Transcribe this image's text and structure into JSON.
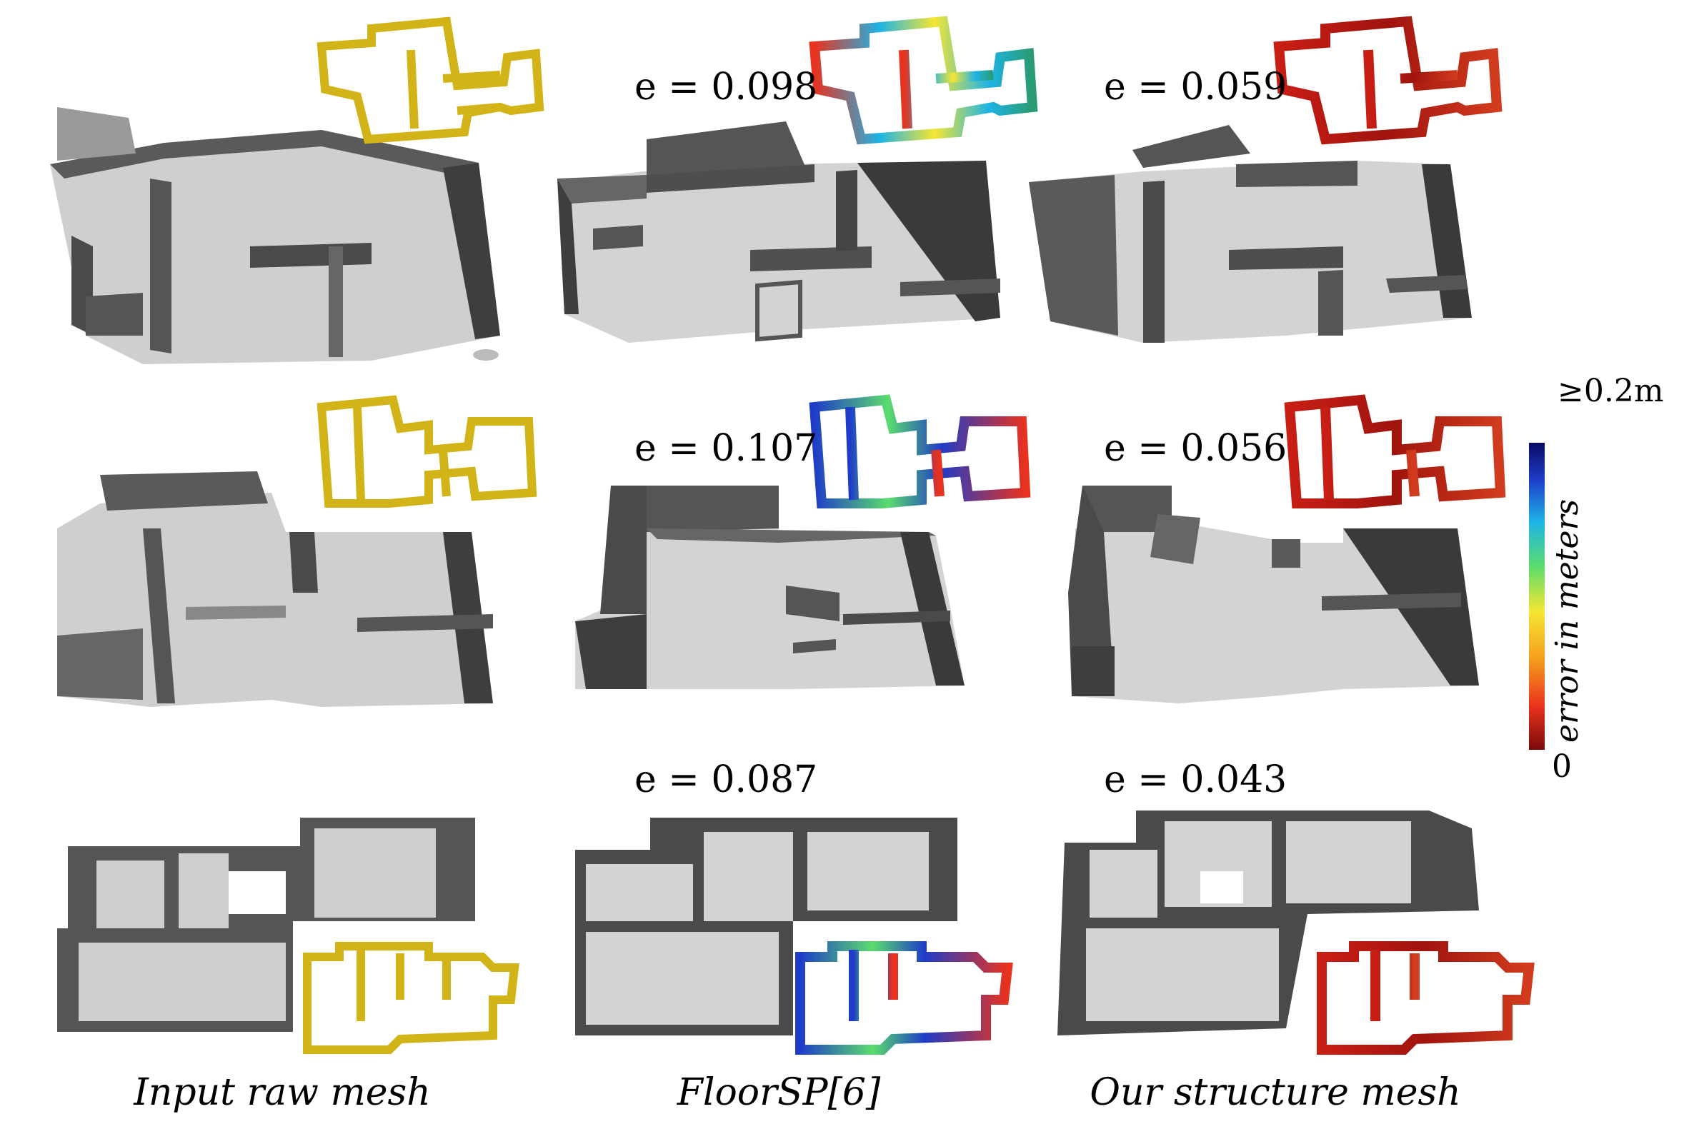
{
  "columns": {
    "input": "Input raw mesh",
    "floorsp": "FloorSP[6]",
    "ours": "Our structure mesh"
  },
  "errors": {
    "row1": {
      "floorsp": "e = 0.098",
      "ours": "e = 0.059"
    },
    "row2": {
      "floorsp": "e = 0.107",
      "ours": "e = 0.056"
    },
    "row3": {
      "floorsp": "e = 0.087",
      "ours": "e = 0.043"
    }
  },
  "colorbar": {
    "title": "error in meters",
    "max_label": "≥0.2m",
    "min_label": "0",
    "colors": [
      "#7a0a0a",
      "#e8321e",
      "#f5a01e",
      "#f5e632",
      "#5adc6e",
      "#1eb4e6",
      "#1e3cc8",
      "#0a0a64"
    ]
  },
  "palette": {
    "floor": "#d3d3d3",
    "wall": "#4a4a4a",
    "raw_floor": "#cfcfcf",
    "inset_input": "#d2b418"
  }
}
